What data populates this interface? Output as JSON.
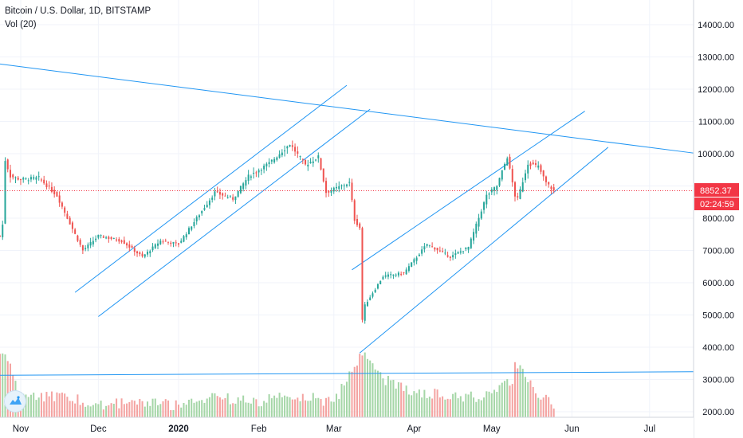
{
  "legend": {
    "symbol": "Bitcoin / U.S. Dollar, 1D, BITSTAMP",
    "volume": "Vol (20)"
  },
  "last_price": {
    "value": "8852.37",
    "countdown": "02:24:59",
    "color": "#f23645"
  },
  "colors": {
    "up": "#26a69a",
    "down": "#ef5350",
    "vol_up": "#a5d6a7",
    "vol_down": "#f4a3a1",
    "trendline": "#2196f3",
    "grid": "#f0f3fa"
  },
  "logo": {
    "name": "tradingview-logo-icon"
  },
  "chart_data": {
    "type": "candlestick",
    "title": "Bitcoin / U.S. Dollar, 1D, BITSTAMP",
    "x_range": [
      "2019-10-24",
      "2020-07-18"
    ],
    "y_range": [
      1800,
      14800
    ],
    "y_ticks": [
      2000,
      3000,
      4000,
      5000,
      6000,
      7000,
      8000,
      9000,
      10000,
      11000,
      12000,
      13000,
      14000
    ],
    "y_tick_labels": [
      "2000.00",
      "3000.00",
      "4000.00",
      "5000.00",
      "6000.00",
      "7000.00",
      "8000.00",
      "9000.00",
      "10000.00",
      "11000.00",
      "12000.00",
      "13000.00",
      "14000.00"
    ],
    "x_ticks": [
      {
        "date": "2019-11-01",
        "label": "Nov"
      },
      {
        "date": "2019-12-01",
        "label": "Dec"
      },
      {
        "date": "2020-01-01",
        "label": "2020"
      },
      {
        "date": "2020-02-01",
        "label": "Feb"
      },
      {
        "date": "2020-03-01",
        "label": "Mar"
      },
      {
        "date": "2020-04-01",
        "label": "Apr"
      },
      {
        "date": "2020-05-01",
        "label": "May"
      },
      {
        "date": "2020-06-01",
        "label": "Jun"
      },
      {
        "date": "2020-07-01",
        "label": "Jul"
      }
    ],
    "price_anchors": [
      [
        "2019-10-24",
        7450
      ],
      [
        "2019-10-25",
        7800
      ],
      [
        "2019-10-26",
        9800
      ],
      [
        "2019-10-28",
        9300
      ],
      [
        "2019-11-01",
        9200
      ],
      [
        "2019-11-08",
        9250
      ],
      [
        "2019-11-15",
        8700
      ],
      [
        "2019-11-22",
        7500
      ],
      [
        "2019-11-25",
        7000
      ],
      [
        "2019-12-01",
        7450
      ],
      [
        "2019-12-10",
        7300
      ],
      [
        "2019-12-18",
        6800
      ],
      [
        "2019-12-25",
        7300
      ],
      [
        "2020-01-01",
        7200
      ],
      [
        "2020-01-08",
        8000
      ],
      [
        "2020-01-15",
        8800
      ],
      [
        "2020-01-22",
        8600
      ],
      [
        "2020-01-28",
        9300
      ],
      [
        "2020-02-05",
        9700
      ],
      [
        "2020-02-13",
        10300
      ],
      [
        "2020-02-19",
        9650
      ],
      [
        "2020-02-24",
        9900
      ],
      [
        "2020-02-27",
        8800
      ],
      [
        "2020-03-07",
        9100
      ],
      [
        "2020-03-09",
        7950
      ],
      [
        "2020-03-11",
        7700
      ],
      [
        "2020-03-12",
        4850
      ],
      [
        "2020-03-13",
        5300
      ],
      [
        "2020-03-20",
        6200
      ],
      [
        "2020-03-28",
        6300
      ],
      [
        "2020-04-06",
        7200
      ],
      [
        "2020-04-15",
        6800
      ],
      [
        "2020-04-22",
        7100
      ],
      [
        "2020-04-29",
        8700
      ],
      [
        "2020-05-03",
        9000
      ],
      [
        "2020-05-07",
        9900
      ],
      [
        "2020-05-10",
        8700
      ],
      [
        "2020-05-11",
        8600
      ],
      [
        "2020-05-15",
        9700
      ],
      [
        "2020-05-19",
        9600
      ],
      [
        "2020-05-22",
        9100
      ],
      [
        "2020-05-25",
        8850
      ]
    ],
    "volume_anchors": [
      [
        "2019-10-26",
        3950
      ],
      [
        "2019-11-01",
        2700
      ],
      [
        "2019-11-20",
        2600
      ],
      [
        "2019-12-01",
        2400
      ],
      [
        "2019-12-20",
        2450
      ],
      [
        "2020-01-01",
        2350
      ],
      [
        "2020-01-15",
        2600
      ],
      [
        "2020-02-01",
        2500
      ],
      [
        "2020-02-15",
        2700
      ],
      [
        "2020-03-01",
        2450
      ],
      [
        "2020-03-12",
        4000
      ],
      [
        "2020-03-13",
        3900
      ],
      [
        "2020-03-20",
        3200
      ],
      [
        "2020-04-01",
        2800
      ],
      [
        "2020-04-20",
        2600
      ],
      [
        "2020-05-01",
        2700
      ],
      [
        "2020-05-09",
        3200
      ],
      [
        "2020-05-10",
        3700
      ],
      [
        "2020-05-20",
        2600
      ],
      [
        "2020-05-27",
        2350
      ]
    ],
    "trendlines": [
      {
        "name": "long-term-downtrend",
        "points": [
          [
            "2019-10-24",
            12780
          ],
          [
            "2020-07-18",
            10020
          ]
        ]
      },
      {
        "name": "support-horizontal",
        "points": [
          [
            "2019-10-24",
            3130
          ],
          [
            "2020-07-18",
            3240
          ]
        ]
      },
      {
        "name": "channel-1-upper",
        "points": [
          [
            "2019-11-22",
            5700
          ],
          [
            "2020-03-06",
            12120
          ]
        ]
      },
      {
        "name": "channel-1-lower",
        "points": [
          [
            "2019-12-01",
            4950
          ],
          [
            "2020-03-15",
            11380
          ]
        ]
      },
      {
        "name": "channel-2-upper",
        "points": [
          [
            "2020-03-08",
            6400
          ],
          [
            "2020-06-06",
            11320
          ]
        ]
      },
      {
        "name": "channel-2-lower",
        "points": [
          [
            "2020-03-11",
            3820
          ],
          [
            "2020-06-15",
            10200
          ]
        ]
      }
    ]
  }
}
